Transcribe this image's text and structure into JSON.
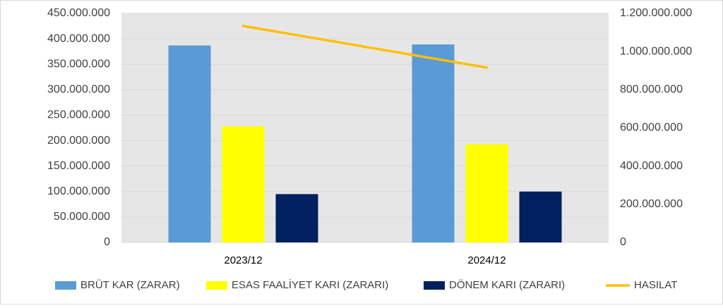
{
  "chart_data": {
    "type": "bar",
    "categories": [
      "2023/12",
      "2024/12"
    ],
    "series": [
      {
        "name": "BRÜT KAR (ZARAR)",
        "color": "#5b9bd5",
        "values": [
          387000000,
          389000000
        ]
      },
      {
        "name": "ESAS FAALİYET KARI (ZARARI)",
        "color": "#ffff00",
        "values": [
          228000000,
          193000000
        ]
      },
      {
        "name": "DÖNEM KARI (ZARARI)",
        "color": "#002060",
        "values": [
          95000000,
          100000000
        ]
      },
      {
        "name": "HASILAT",
        "color": "#ffc000",
        "type": "line",
        "axis": "y2",
        "values": [
          1134000000,
          916000000
        ]
      }
    ],
    "ylim": [
      0,
      450000000
    ],
    "yticks": [
      {
        "value": 0,
        "label": "0"
      },
      {
        "value": 50000000,
        "label": "50.000.000"
      },
      {
        "value": 100000000,
        "label": "100.000.000"
      },
      {
        "value": 150000000,
        "label": "150.000.000"
      },
      {
        "value": 200000000,
        "label": "200.000.000"
      },
      {
        "value": 250000000,
        "label": "250.000.000"
      },
      {
        "value": 300000000,
        "label": "300.000.000"
      },
      {
        "value": 350000000,
        "label": "350.000.000"
      },
      {
        "value": 400000000,
        "label": "400.000.000"
      },
      {
        "value": 450000000,
        "label": "450.000.000"
      }
    ],
    "y2lim": [
      0,
      1200000000
    ],
    "y2ticks": [
      {
        "value": 0,
        "label": "0"
      },
      {
        "value": 200000000,
        "label": "200.000.000"
      },
      {
        "value": 400000000,
        "label": "400.000.000"
      },
      {
        "value": 600000000,
        "label": "600.000.000"
      },
      {
        "value": 800000000,
        "label": "800.000.000"
      },
      {
        "value": 1000000000,
        "label": "1.000.000.000"
      },
      {
        "value": 1200000000,
        "label": "1.200.000.000"
      }
    ],
    "grid": true,
    "legend": "bottom"
  }
}
